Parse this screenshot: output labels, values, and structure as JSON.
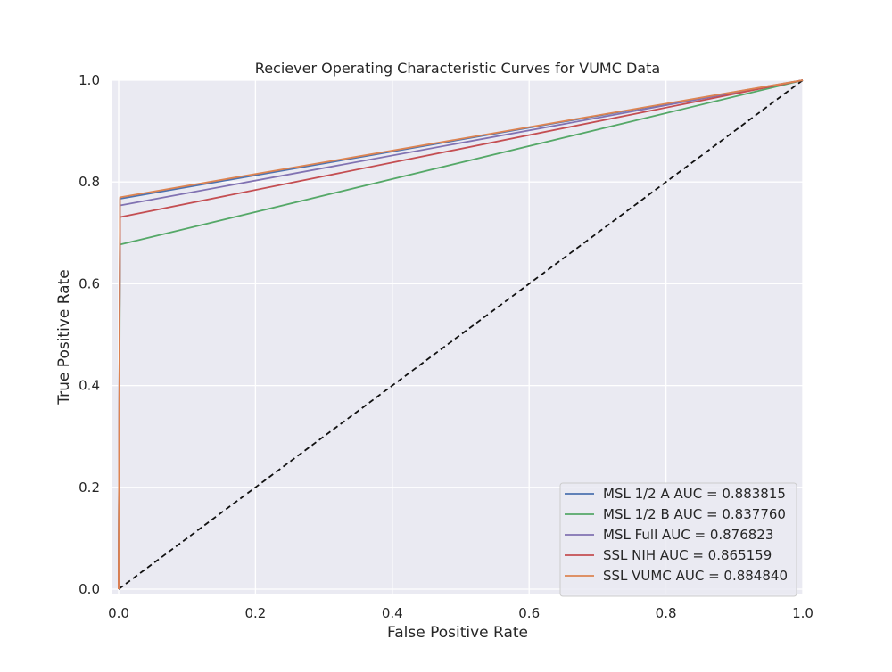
{
  "chart_data": {
    "type": "line",
    "title": "Reciever Operating Characteristic Curves for VUMC Data",
    "xlabel": "False Positive Rate",
    "ylabel": "True Positive Rate",
    "xlim": [
      0.0,
      1.0
    ],
    "ylim": [
      0.0,
      1.0
    ],
    "xticks": [
      "0.0",
      "0.2",
      "0.4",
      "0.6",
      "0.8",
      "1.0"
    ],
    "yticks": [
      "0.0",
      "0.2",
      "0.4",
      "0.6",
      "0.8",
      "1.0"
    ],
    "grid": true,
    "background": "#eaeaf2",
    "grid_color": "#ffffff",
    "legend_position": "lower right",
    "series": [
      {
        "name": "MSL 1/2 A AUC = 0.883815",
        "color": "#4c72b0",
        "x": [
          0.0,
          0.002,
          1.0
        ],
        "y": [
          0.0,
          0.767,
          1.0
        ]
      },
      {
        "name": "MSL 1/2 B AUC = 0.837760",
        "color": "#55a868",
        "x": [
          0.0,
          0.002,
          1.0
        ],
        "y": [
          0.0,
          0.677,
          1.0
        ]
      },
      {
        "name": "MSL Full AUC = 0.876823",
        "color": "#8172b2",
        "x": [
          0.0,
          0.002,
          1.0
        ],
        "y": [
          0.0,
          0.754,
          1.0
        ]
      },
      {
        "name": "SSL NIH AUC = 0.865159",
        "color": "#c44e52",
        "x": [
          0.0,
          0.002,
          1.0
        ],
        "y": [
          0.0,
          0.731,
          1.0
        ]
      },
      {
        "name": "SSL VUMC AUC = 0.884840",
        "color": "#dd8452",
        "x": [
          0.0,
          0.002,
          1.0
        ],
        "y": [
          0.0,
          0.77,
          1.0
        ]
      }
    ],
    "reference_line": {
      "style": "dashed",
      "color": "#111111",
      "x": [
        0.0,
        1.0
      ],
      "y": [
        0.0,
        1.0
      ]
    }
  }
}
